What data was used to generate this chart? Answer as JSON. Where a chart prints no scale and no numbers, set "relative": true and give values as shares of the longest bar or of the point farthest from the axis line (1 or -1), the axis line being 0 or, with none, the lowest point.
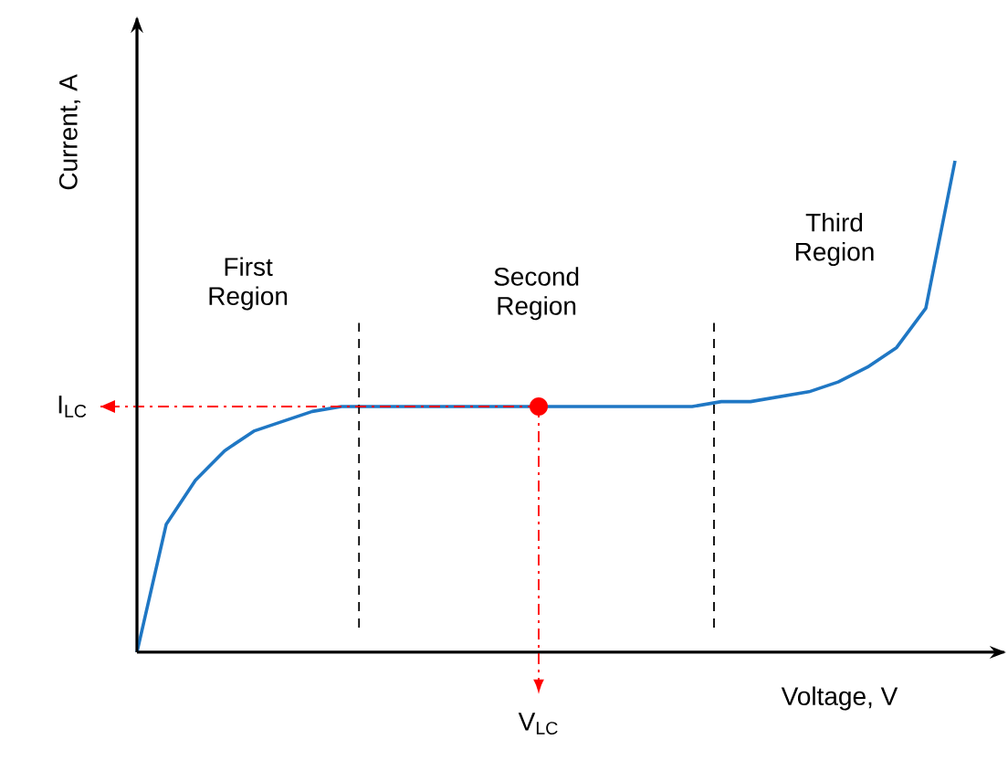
{
  "chart_data": {
    "type": "line",
    "relative": true,
    "xlabel": "Voltage, V",
    "ylabel": "Current, A",
    "categories": [
      null,
      null,
      null,
      null,
      null,
      null,
      null,
      null,
      null,
      null,
      null,
      null,
      null,
      null,
      null,
      null,
      null,
      null,
      null,
      null,
      null,
      null,
      null,
      null,
      null,
      null,
      null,
      null,
      null
    ],
    "series": [
      {
        "color": "#1f77c4",
        "values": [
          0,
          0.26,
          0.35,
          0.41,
          0.45,
          0.47,
          0.49,
          0.5,
          0.5,
          0.5,
          0.5,
          0.5,
          0.5,
          0.5,
          0.5,
          0.5,
          0.5,
          0.5,
          0.5,
          0.5,
          0.51,
          0.51,
          0.52,
          0.53,
          0.55,
          0.58,
          0.62,
          0.7,
          1.0
        ]
      }
    ],
    "ref_lines": [
      {
        "axis": "y",
        "value": 0.5,
        "label": "I$_{LC}$",
        "color": "#ff0000",
        "line_style": "dashdot"
      }
    ],
    "annotations": [
      "First Region",
      "Second Region",
      "Third Region",
      "V$_{LC}$"
    ],
    "marker": "none"
  }
}
